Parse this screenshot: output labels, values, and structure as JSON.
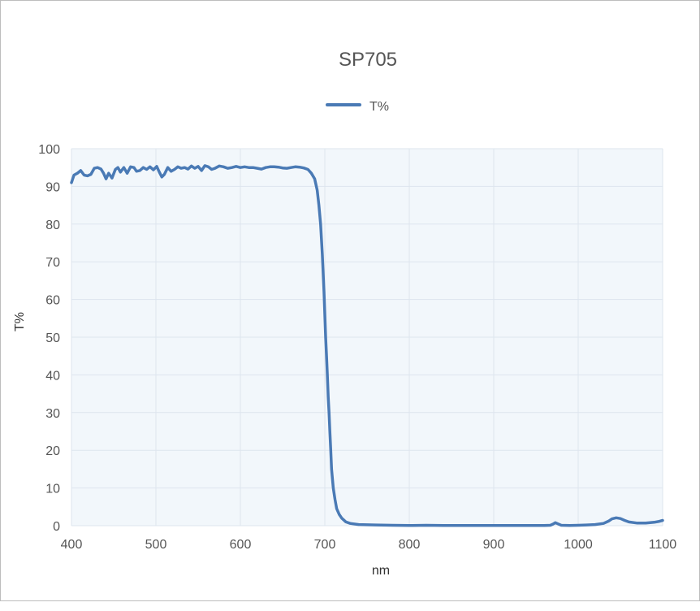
{
  "chart_data": {
    "type": "line",
    "title": "SP705",
    "xlabel": "nm",
    "ylabel": "T%",
    "xlim": [
      400,
      1100
    ],
    "ylim": [
      0,
      100
    ],
    "xticks": [
      400,
      500,
      600,
      700,
      800,
      900,
      1000,
      1100
    ],
    "yticks": [
      0,
      10,
      20,
      30,
      40,
      50,
      60,
      70,
      80,
      90,
      100
    ],
    "grid": true,
    "legend": "top-center",
    "series": [
      {
        "name": "T%",
        "color": "#4a7ab5",
        "points": [
          [
            400,
            91
          ],
          [
            403,
            93
          ],
          [
            407,
            93.5
          ],
          [
            411,
            94.2
          ],
          [
            415,
            93
          ],
          [
            419,
            92.8
          ],
          [
            423,
            93.2
          ],
          [
            427,
            94.8
          ],
          [
            431,
            95
          ],
          [
            435,
            94.6
          ],
          [
            438,
            93.5
          ],
          [
            441,
            92
          ],
          [
            444,
            93.5
          ],
          [
            448,
            92.2
          ],
          [
            452,
            94.5
          ],
          [
            455,
            95
          ],
          [
            458,
            93.8
          ],
          [
            462,
            95
          ],
          [
            466,
            93.5
          ],
          [
            470,
            95.2
          ],
          [
            474,
            95
          ],
          [
            477,
            94
          ],
          [
            481,
            94.2
          ],
          [
            485,
            95
          ],
          [
            489,
            94.5
          ],
          [
            493,
            95.2
          ],
          [
            497,
            94.4
          ],
          [
            501,
            95.3
          ],
          [
            504,
            93.8
          ],
          [
            507,
            92.5
          ],
          [
            510,
            93.2
          ],
          [
            514,
            95
          ],
          [
            518,
            94
          ],
          [
            522,
            94.5
          ],
          [
            526,
            95.2
          ],
          [
            530,
            94.8
          ],
          [
            534,
            95
          ],
          [
            538,
            94.6
          ],
          [
            542,
            95.4
          ],
          [
            546,
            94.8
          ],
          [
            550,
            95.3
          ],
          [
            554,
            94.2
          ],
          [
            558,
            95.5
          ],
          [
            562,
            95.2
          ],
          [
            566,
            94.5
          ],
          [
            570,
            94.8
          ],
          [
            575,
            95.4
          ],
          [
            580,
            95.2
          ],
          [
            585,
            94.8
          ],
          [
            590,
            95
          ],
          [
            595,
            95.3
          ],
          [
            600,
            95
          ],
          [
            605,
            95.2
          ],
          [
            610,
            95
          ],
          [
            615,
            95
          ],
          [
            620,
            94.8
          ],
          [
            625,
            94.6
          ],
          [
            630,
            95
          ],
          [
            635,
            95.2
          ],
          [
            640,
            95.2
          ],
          [
            645,
            95.1
          ],
          [
            650,
            94.9
          ],
          [
            655,
            94.8
          ],
          [
            660,
            95
          ],
          [
            665,
            95.2
          ],
          [
            670,
            95.1
          ],
          [
            675,
            94.9
          ],
          [
            680,
            94.5
          ],
          [
            684,
            93.5
          ],
          [
            688,
            92
          ],
          [
            691,
            89
          ],
          [
            693,
            85
          ],
          [
            695,
            80
          ],
          [
            697,
            72
          ],
          [
            699,
            62
          ],
          [
            700,
            56
          ],
          [
            701,
            50
          ],
          [
            702,
            45
          ],
          [
            703,
            40
          ],
          [
            704,
            34
          ],
          [
            705,
            30
          ],
          [
            706,
            25
          ],
          [
            707,
            20
          ],
          [
            708,
            15
          ],
          [
            710,
            10
          ],
          [
            712,
            7
          ],
          [
            714,
            4.5
          ],
          [
            717,
            3
          ],
          [
            720,
            2
          ],
          [
            725,
            1
          ],
          [
            730,
            0.6
          ],
          [
            740,
            0.3
          ],
          [
            760,
            0.2
          ],
          [
            780,
            0.1
          ],
          [
            800,
            0.05
          ],
          [
            820,
            0.1
          ],
          [
            840,
            0.05
          ],
          [
            860,
            0.05
          ],
          [
            880,
            0.05
          ],
          [
            900,
            0.05
          ],
          [
            920,
            0.05
          ],
          [
            940,
            0.05
          ],
          [
            960,
            0.05
          ],
          [
            967,
            0.1
          ],
          [
            970,
            0.4
          ],
          [
            973,
            0.8
          ],
          [
            976,
            0.5
          ],
          [
            980,
            0.1
          ],
          [
            990,
            0.05
          ],
          [
            1000,
            0.1
          ],
          [
            1010,
            0.2
          ],
          [
            1020,
            0.3
          ],
          [
            1030,
            0.6
          ],
          [
            1036,
            1.2
          ],
          [
            1040,
            1.8
          ],
          [
            1045,
            2.1
          ],
          [
            1050,
            1.9
          ],
          [
            1055,
            1.4
          ],
          [
            1060,
            1.0
          ],
          [
            1070,
            0.7
          ],
          [
            1080,
            0.7
          ],
          [
            1090,
            0.9
          ],
          [
            1095,
            1.1
          ],
          [
            1100,
            1.4
          ]
        ]
      }
    ]
  }
}
